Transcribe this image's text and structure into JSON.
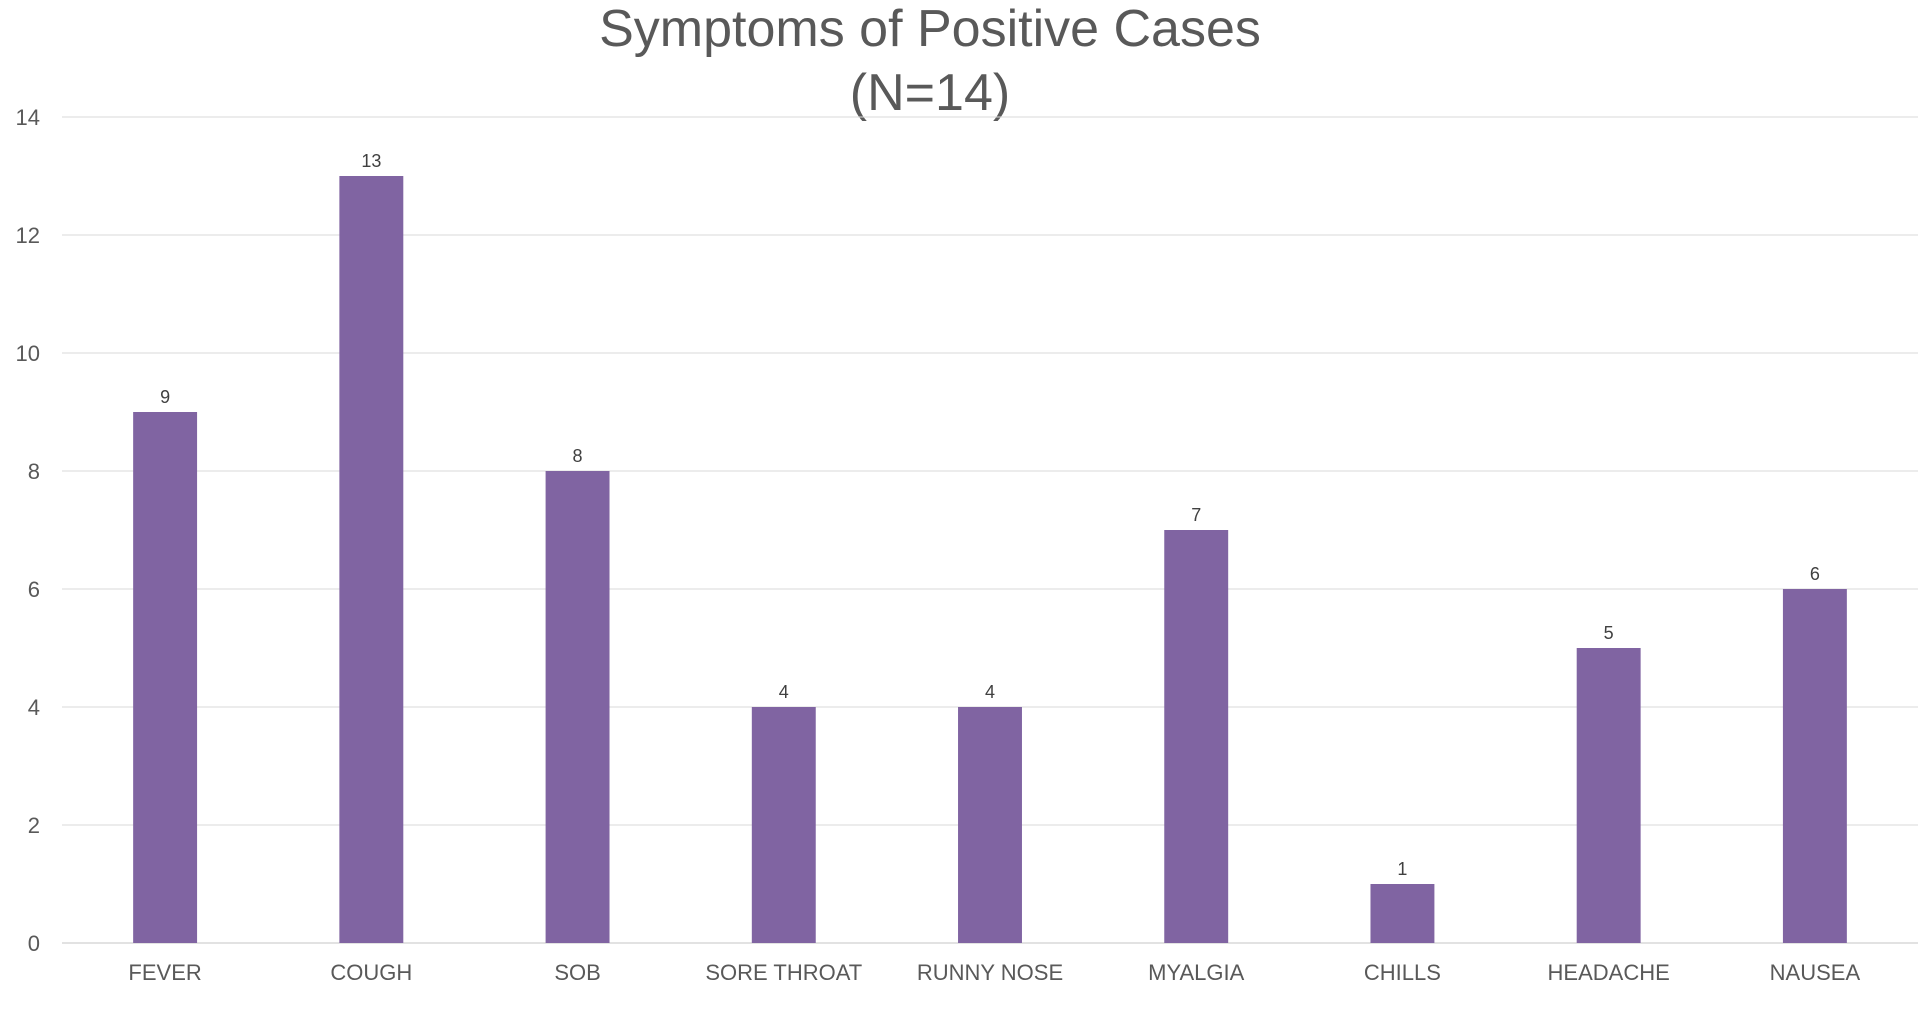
{
  "chart_data": {
    "type": "bar",
    "title": "Symptoms of Positive Cases",
    "subtitle": "(N=14)",
    "xlabel": "",
    "ylabel": "",
    "categories": [
      "FEVER",
      "COUGH",
      "SOB",
      "SORE THROAT",
      "RUNNY NOSE",
      "MYALGIA",
      "CHILLS",
      "HEADACHE",
      "NAUSEA"
    ],
    "values": [
      9,
      13,
      8,
      4,
      4,
      7,
      1,
      5,
      6
    ],
    "ylim": [
      0,
      14
    ],
    "yticks": [
      0,
      2,
      4,
      6,
      8,
      10,
      12,
      14
    ],
    "grid": true,
    "legend": "none",
    "data_labels": true,
    "bar_color": "#8064a2"
  }
}
